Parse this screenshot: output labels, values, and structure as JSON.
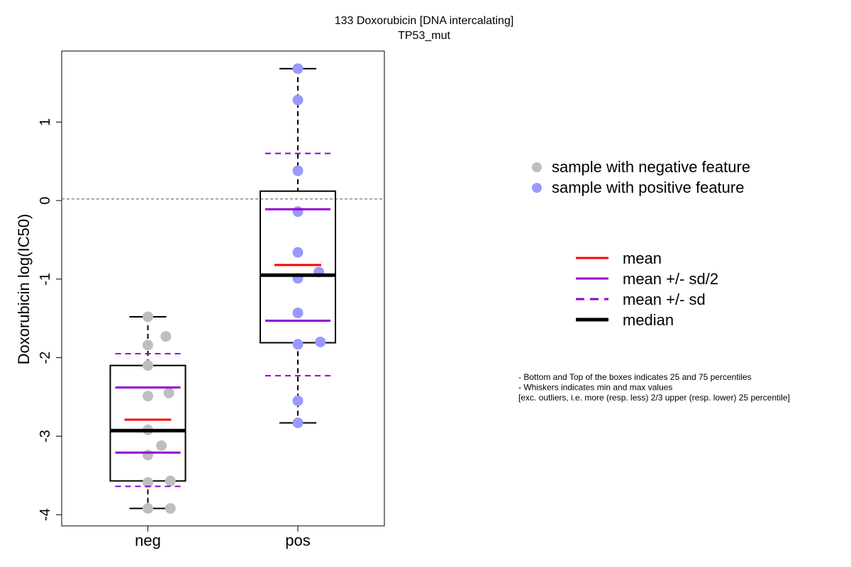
{
  "chart_data": {
    "type": "box",
    "title": "133 Doxorubicin [DNA intercalating]",
    "subtitle": "TP53_mut",
    "xlabel": "",
    "ylabel": "Doxorubicin log(IC50)",
    "categories": [
      "neg",
      "pos"
    ],
    "ylim": [
      -4.15,
      1.9
    ],
    "yticks": [
      -4,
      -3,
      -2,
      -1,
      0,
      1
    ],
    "ytick_labels": [
      "-4",
      "-3",
      "-2",
      "-1",
      "0",
      "1"
    ],
    "reference_line": 0.02,
    "grid": false,
    "groups": [
      {
        "name": "neg",
        "color": "#bebebe",
        "points": [
          {
            "x": 1,
            "y": -1.48
          },
          {
            "x": 1.12,
            "y": -1.73
          },
          {
            "x": 1,
            "y": -1.84
          },
          {
            "x": 1,
            "y": -2.1
          },
          {
            "x": 1,
            "y": -2.49
          },
          {
            "x": 1.14,
            "y": -2.45
          },
          {
            "x": 1,
            "y": -2.92
          },
          {
            "x": 1.09,
            "y": -3.12
          },
          {
            "x": 1,
            "y": -3.24
          },
          {
            "x": 1,
            "y": -3.59
          },
          {
            "x": 1.15,
            "y": -3.57
          },
          {
            "x": 1,
            "y": -3.92
          },
          {
            "x": 1.15,
            "y": -3.92
          }
        ],
        "whisker_low": -3.92,
        "q1": -3.57,
        "median": -2.93,
        "q3": -2.1,
        "whisker_high": -1.48,
        "mean": -2.79,
        "mean_minus_half_sd": -3.21,
        "mean_plus_half_sd": -2.38,
        "mean_minus_sd": -3.64,
        "mean_plus_sd": -1.95
      },
      {
        "name": "pos",
        "color": "#9999ff",
        "points": [
          {
            "x": 2,
            "y": 1.68
          },
          {
            "x": 2,
            "y": 1.28
          },
          {
            "x": 2,
            "y": 0.38
          },
          {
            "x": 2,
            "y": -0.14
          },
          {
            "x": 2,
            "y": -0.66
          },
          {
            "x": 2.14,
            "y": -0.91
          },
          {
            "x": 2,
            "y": -0.99
          },
          {
            "x": 2,
            "y": -1.43
          },
          {
            "x": 2,
            "y": -1.83
          },
          {
            "x": 2.15,
            "y": -1.8
          },
          {
            "x": 2,
            "y": -2.55
          },
          {
            "x": 2,
            "y": -2.83
          }
        ],
        "whisker_low": -2.83,
        "q1": -1.81,
        "median": -0.95,
        "q3": 0.12,
        "whisker_high": 1.68,
        "mean": -0.82,
        "mean_minus_half_sd": -1.53,
        "mean_plus_half_sd": -0.11,
        "mean_minus_sd": -2.23,
        "mean_plus_sd": 0.6
      }
    ],
    "colors": {
      "mean": "#ff0000",
      "sd": "#9400d3",
      "median": "#000000",
      "negative": "#bebebe",
      "positive": "#9999ff"
    },
    "legend_points": [
      {
        "label": "sample with negative feature",
        "color": "#bebebe"
      },
      {
        "label": "sample with positive feature",
        "color": "#9999ff"
      }
    ],
    "legend_lines": [
      {
        "label": "mean",
        "color": "#ff0000",
        "style": "solid",
        "weight": "normal"
      },
      {
        "label": "mean +/- sd/2",
        "color": "#9400d3",
        "style": "solid",
        "weight": "normal"
      },
      {
        "label": "mean +/- sd",
        "color": "#9400d3",
        "style": "dashed",
        "weight": "normal"
      },
      {
        "label": "median",
        "color": "#000000",
        "style": "solid",
        "weight": "bold"
      }
    ],
    "notes": [
      "- Bottom and Top of the boxes indicates 25 and 75 percentiles",
      "- Whiskers indicates min and max values",
      "[exc. outliers, i.e. more (resp. less) 2/3 upper (resp. lower) 25 percentile]"
    ]
  }
}
